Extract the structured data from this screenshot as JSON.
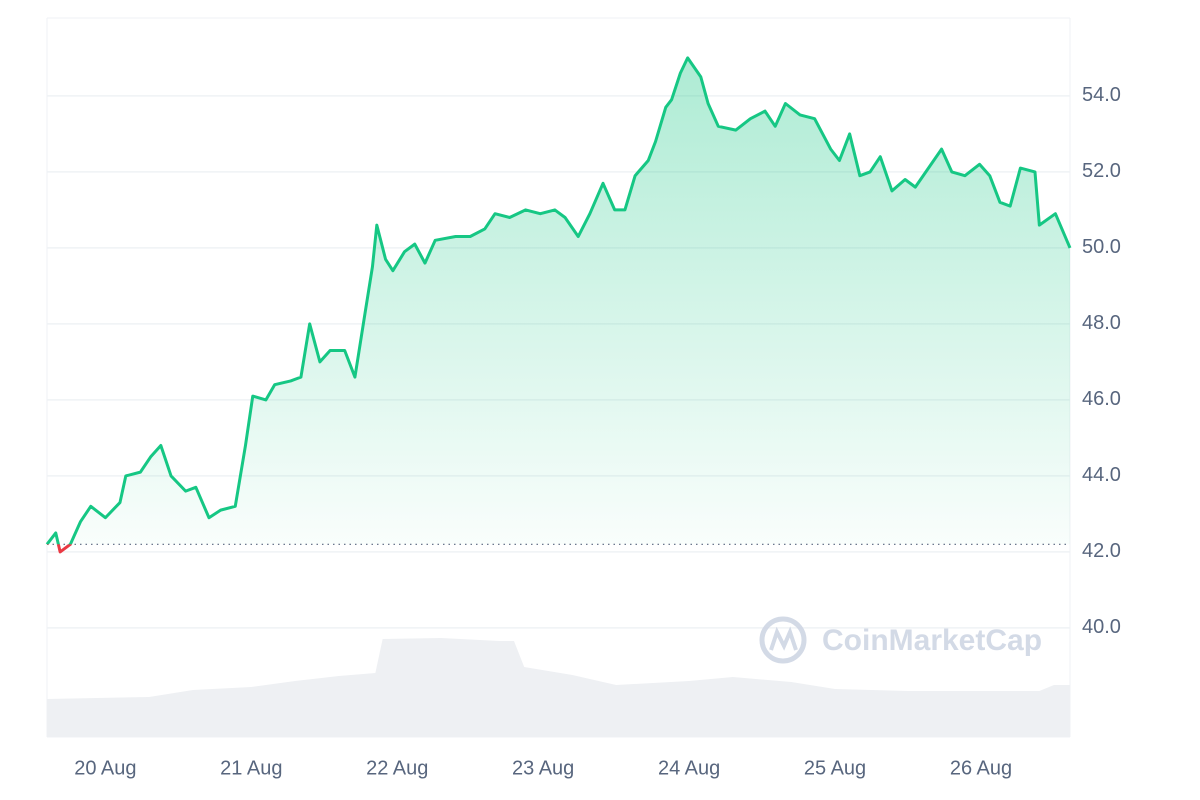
{
  "chart_data": {
    "type": "line",
    "series": [
      {
        "color": "#16c784",
        "down_color": "#ea3943",
        "x": [
          -0.4,
          -0.34,
          -0.31,
          -0.24,
          -0.17,
          -0.1,
          0,
          0.1,
          0.14,
          0.24,
          0.31,
          0.38,
          0.45,
          0.55,
          0.62,
          0.71,
          0.79,
          0.89,
          0.96,
          1.01,
          1.1,
          1.16,
          1.27,
          1.34,
          1.4,
          1.47,
          1.54,
          1.64,
          1.71,
          1.78,
          1.83,
          1.86,
          1.92,
          1.97,
          2.05,
          2.12,
          2.19,
          2.26,
          2.4,
          2.5,
          2.6,
          2.67,
          2.77,
          2.88,
          2.98,
          3.08,
          3.15,
          3.24,
          3.32,
          3.41,
          3.49,
          3.56,
          3.63,
          3.72,
          3.77,
          3.84,
          3.88,
          3.94,
          3.99,
          4.08,
          4.13,
          4.2,
          4.32,
          4.42,
          4.52,
          4.59,
          4.66,
          4.76,
          4.86,
          4.97,
          5.03,
          5.1,
          5.17,
          5.24,
          5.31,
          5.39,
          5.48,
          5.55,
          5.64,
          5.73,
          5.8,
          5.89,
          5.99,
          6.06,
          6.13,
          6.2,
          6.27,
          6.37,
          6.4,
          6.51,
          6.61
        ],
        "values": [
          42.2,
          42.5,
          42.0,
          42.2,
          42.8,
          43.2,
          42.9,
          43.3,
          44.0,
          44.1,
          44.5,
          44.8,
          44.0,
          43.6,
          43.7,
          42.9,
          43.1,
          43.2,
          44.8,
          46.1,
          46.0,
          46.4,
          46.5,
          46.6,
          48.0,
          47.0,
          47.3,
          47.3,
          46.6,
          48.3,
          49.5,
          50.6,
          49.7,
          49.4,
          49.9,
          50.1,
          49.6,
          50.2,
          50.3,
          50.3,
          50.5,
          50.9,
          50.8,
          51.0,
          50.9,
          51.0,
          50.8,
          50.3,
          50.9,
          51.7,
          51.0,
          51.0,
          51.9,
          52.3,
          52.8,
          53.7,
          53.9,
          54.6,
          55.0,
          54.5,
          53.8,
          53.2,
          53.1,
          53.4,
          53.6,
          53.2,
          53.8,
          53.5,
          53.4,
          52.6,
          52.3,
          53.0,
          51.9,
          52.0,
          52.4,
          51.5,
          51.8,
          51.6,
          52.1,
          52.6,
          52.0,
          51.9,
          52.2,
          51.9,
          51.2,
          51.1,
          52.1,
          52.0,
          50.6,
          50.9,
          50.0
        ]
      }
    ],
    "baseline": 42.2,
    "volume": {
      "color": "#eef0f3",
      "x": [
        -0.4,
        0.3,
        0.6,
        1.0,
        1.3,
        1.6,
        1.85,
        1.9,
        2.3,
        2.7,
        2.8,
        2.87,
        3.2,
        3.5,
        4.0,
        4.3,
        4.7,
        5.0,
        5.5,
        6.0,
        6.4,
        6.5,
        6.61
      ],
      "values": [
        38,
        40,
        47,
        50,
        56,
        61,
        64,
        98,
        99,
        96,
        96,
        70,
        62,
        52,
        56,
        60,
        55,
        48,
        46,
        46,
        46,
        52,
        52
      ],
      "ylim": [
        0,
        100
      ]
    },
    "xlim": [
      -0.4,
      6.61
    ],
    "xticks": [
      {
        "value": 0,
        "label": "20 Aug"
      },
      {
        "value": 1,
        "label": "21 Aug"
      },
      {
        "value": 2,
        "label": "22 Aug"
      },
      {
        "value": 3,
        "label": "23 Aug"
      },
      {
        "value": 4,
        "label": "24 Aug"
      },
      {
        "value": 5,
        "label": "25 Aug"
      },
      {
        "value": 6,
        "label": "26 Aug"
      }
    ],
    "ylim": [
      37.13,
      56.05
    ],
    "yticks": [
      {
        "value": 40,
        "label": "40.0"
      },
      {
        "value": 42,
        "label": "42.0"
      },
      {
        "value": 44,
        "label": "44.0"
      },
      {
        "value": 46,
        "label": "46.0"
      },
      {
        "value": 48,
        "label": "48.0"
      },
      {
        "value": 50,
        "label": "50.0"
      },
      {
        "value": 52,
        "label": "52.0"
      },
      {
        "value": 54,
        "label": "54.0"
      }
    ],
    "grid": true,
    "watermark": "CoinMarketCap"
  }
}
